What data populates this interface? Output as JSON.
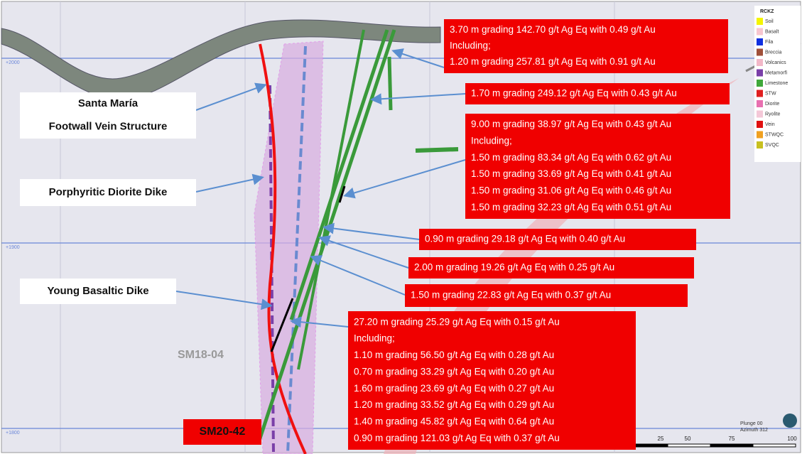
{
  "legend": {
    "title": "RCKZ",
    "items": [
      {
        "label": "Soil",
        "color": "#f5f500"
      },
      {
        "label": "Basalt",
        "color": "#f7c6d0"
      },
      {
        "label": "Fila",
        "color": "#1030e0"
      },
      {
        "label": "Breccia",
        "color": "#a0503a"
      },
      {
        "label": "Volcanics",
        "color": "#f2b8c8"
      },
      {
        "label": "Metamorfi",
        "color": "#7a3fa8"
      },
      {
        "label": "Limestone",
        "color": "#3fa83a"
      },
      {
        "label": "STW",
        "color": "#e02020"
      },
      {
        "label": "Diorite",
        "color": "#e870b0"
      },
      {
        "label": "Ryolite",
        "color": "#f4c8d8"
      },
      {
        "label": "Vein",
        "color": "#e01010"
      },
      {
        "label": "STWQC",
        "color": "#f0a020"
      },
      {
        "label": "SVQC",
        "color": "#c8c020"
      }
    ]
  },
  "callouts": [
    {
      "lines": [
        "3.70 m grading 142.70 g/t Ag Eq with 0.49 g/t Au",
        "Including;",
        "1.20 m grading 257.81 g/t Ag Eq with 0.91 g/t Au"
      ]
    },
    {
      "lines": [
        "1.70 m grading 249.12 g/t Ag Eq with 0.43 g/t Au"
      ]
    },
    {
      "lines": [
        "9.00 m grading 38.97 g/t Ag Eq with 0.43 g/t Au",
        "Including;",
        "1.50 m grading 83.34 g/t Ag Eq with 0.62 g/t Au",
        "1.50 m grading 33.69 g/t Ag Eq with 0.41 g/t Au",
        "1.50 m grading 31.06 g/t Ag Eq with 0.46 g/t Au",
        "1.50 m grading 32.23 g/t Ag Eq with 0.51 g/t Au"
      ]
    },
    {
      "lines": [
        "0.90 m grading 29.18 g/t Ag Eq with 0.40 g/t Au"
      ]
    },
    {
      "lines": [
        "2.00 m grading 19.26 g/t Ag Eq with 0.25 g/t Au"
      ]
    },
    {
      "lines": [
        "1.50 m grading 22.83 g/t Ag Eq with 0.37 g/t Au"
      ]
    },
    {
      "lines": [
        "27.20 m grading 25.29 g/t Ag Eq with 0.15 g/t Au",
        "Including;",
        "1.10 m grading 56.50 g/t Ag Eq with 0.28 g/t Au",
        "0.70 m grading 33.29 g/t Ag Eq with 0.20 g/t Au",
        "1.60 m grading 23.69 g/t Ag Eq with 0.27 g/t Au",
        "1.20 m grading 33.52 g/t Ag Eq with 0.29 g/t Au",
        "1.40 m grading 45.82 g/t Ag Eq with 0.64 g/t Au",
        "0.90 m grading 121.03 g/t Ag Eq with 0.37 g/t Au"
      ]
    }
  ],
  "labels": [
    {
      "lines": [
        "Santa María",
        "Footwall Vein Structure"
      ]
    },
    {
      "lines": [
        "Porphyritic Diorite Dike"
      ]
    },
    {
      "lines": [
        "Young Basaltic Dike"
      ]
    }
  ],
  "holes": [
    "SM18-04",
    "SM20-42"
  ],
  "elevations": [
    "+2000",
    "+1900",
    "+1800"
  ],
  "scale": [
    "25",
    "50",
    "75",
    "100"
  ],
  "view": [
    "Plunge 00",
    "Azimuth 312"
  ]
}
